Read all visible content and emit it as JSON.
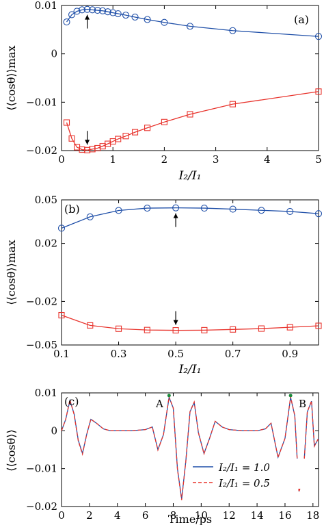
{
  "chart_data": [
    {
      "type": "line",
      "panel_label": "(a)",
      "xlabel": "I2/I1",
      "ylabel": "⟨⟨cosθ⟩⟩max",
      "xlim": [
        0,
        5
      ],
      "ylim": [
        -0.02,
        0.01
      ],
      "xticks": [
        0,
        1,
        2,
        3,
        4,
        5
      ],
      "xtick_labels": [
        "0",
        "1",
        "2",
        "3",
        "4",
        "5"
      ],
      "yticks": [
        -0.02,
        -0.01,
        0,
        0.01
      ],
      "ytick_labels": [
        "−0.02",
        "−0.01",
        "0",
        "0.01"
      ],
      "series": [
        {
          "color": "#1f4fa8",
          "marker": "circle",
          "x": [
            0.1,
            0.2,
            0.3,
            0.4,
            0.5,
            0.6,
            0.7,
            0.8,
            0.9,
            1.0,
            1.1,
            1.25,
            1.43,
            1.67,
            2.0,
            2.5,
            3.33,
            5.0
          ],
          "y": [
            0.0066,
            0.0081,
            0.0088,
            0.0091,
            0.0092,
            0.0091,
            0.009,
            0.0089,
            0.0087,
            0.0085,
            0.0083,
            0.008,
            0.0076,
            0.0071,
            0.0065,
            0.0057,
            0.0048,
            0.0036
          ]
        },
        {
          "color": "#e8332c",
          "marker": "square",
          "x": [
            0.1,
            0.2,
            0.3,
            0.4,
            0.5,
            0.6,
            0.7,
            0.8,
            0.9,
            1.0,
            1.1,
            1.25,
            1.43,
            1.67,
            2.0,
            2.5,
            3.33,
            5.0
          ],
          "y": [
            -0.0142,
            -0.0175,
            -0.0193,
            -0.0198,
            -0.0199,
            -0.0197,
            -0.0195,
            -0.0191,
            -0.0186,
            -0.0181,
            -0.0176,
            -0.017,
            -0.0162,
            -0.0153,
            -0.0141,
            -0.0125,
            -0.0104,
            -0.0078
          ]
        }
      ],
      "arrows": [
        {
          "x": 0.5,
          "direction": "up"
        },
        {
          "x": 0.5,
          "direction": "down"
        }
      ]
    },
    {
      "type": "line",
      "panel_label": "(b)",
      "xlabel": "I2/I1",
      "ylabel": "⟨⟨cosθ⟩⟩max",
      "xlim": [
        0.1,
        1.0
      ],
      "ylim": [
        -0.05,
        0.05
      ],
      "xticks": [
        0.1,
        0.3,
        0.5,
        0.7,
        0.9
      ],
      "xtick_labels": [
        "0.1",
        "0.3",
        "0.5",
        "0.7",
        "0.9"
      ],
      "yticks": [
        -0.05,
        -0.02,
        0.02,
        0.05
      ],
      "ytick_labels": [
        "−0.05",
        "−0.02",
        "0.02",
        "0.05"
      ],
      "series": [
        {
          "color": "#1f4fa8",
          "marker": "circle",
          "x": [
            0.1,
            0.2,
            0.3,
            0.4,
            0.5,
            0.6,
            0.7,
            0.8,
            0.9,
            1.0
          ],
          "y": [
            0.0305,
            0.0383,
            0.0427,
            0.0443,
            0.0445,
            0.0443,
            0.0436,
            0.0428,
            0.042,
            0.0405
          ]
        },
        {
          "color": "#e8332c",
          "marker": "square",
          "x": [
            0.1,
            0.2,
            0.3,
            0.4,
            0.5,
            0.6,
            0.7,
            0.8,
            0.9,
            1.0
          ],
          "y": [
            -0.0295,
            -0.0365,
            -0.0388,
            -0.0397,
            -0.0399,
            -0.0398,
            -0.0393,
            -0.0387,
            -0.0378,
            -0.0368
          ]
        }
      ],
      "arrows": [
        {
          "x": 0.5,
          "direction": "up"
        },
        {
          "x": 0.5,
          "direction": "down"
        }
      ]
    },
    {
      "type": "line",
      "panel_label": "(c)",
      "xlabel": "Time/ps",
      "ylabel": "⟨⟨cosθ⟩⟩",
      "xlim": [
        0,
        18.4
      ],
      "ylim": [
        -0.02,
        0.01
      ],
      "xticks": [
        0,
        2,
        4,
        6,
        8,
        10,
        12,
        14,
        16,
        18
      ],
      "xtick_labels": [
        "0",
        "2",
        "4",
        "6",
        "8",
        "10",
        "12",
        "14",
        "16",
        "18"
      ],
      "yticks": [
        -0.02,
        -0.01,
        0,
        0.01
      ],
      "ytick_labels": [
        "−0.02",
        "−0.01",
        "0",
        "0.01"
      ],
      "annotations": [
        {
          "text": "A",
          "x": 7.7,
          "y": 0.0093
        },
        {
          "text": "B",
          "x": 16.4,
          "y": 0.0093
        }
      ],
      "series": [
        {
          "name": "I2/I1 = 1.0",
          "color": "#1f4fa8",
          "style": "solid",
          "x": [
            0,
            0.3,
            0.6,
            0.9,
            1.2,
            1.5,
            1.8,
            2.1,
            2.5,
            3.0,
            3.5,
            4.0,
            5.0,
            6.0,
            6.5,
            6.9,
            7.3,
            7.7,
            8.0,
            8.3,
            8.6,
            8.9,
            9.2,
            9.5,
            9.8,
            10.2,
            10.6,
            11.0,
            11.5,
            12.0,
            13.0,
            14.0,
            14.6,
            15.0,
            15.5,
            16.0,
            16.4,
            16.7,
            17.0,
            17.3,
            17.6,
            17.9,
            18.1,
            18.4
          ],
          "y": [
            0,
            0.003,
            0.008,
            0.0045,
            -0.0025,
            -0.006,
            -0.001,
            0.003,
            0.002,
            0.0005,
            0,
            0,
            0,
            0.0003,
            0.001,
            -0.005,
            -0.001,
            0.0088,
            0.006,
            -0.01,
            -0.018,
            -0.008,
            0.005,
            0.0075,
            -0.0005,
            -0.006,
            -0.002,
            0.0025,
            0.001,
            0.0003,
            0,
            0,
            0.0005,
            0.002,
            -0.007,
            -0.002,
            0.0088,
            0.004,
            -0.016,
            -0.012,
            0.005,
            0.0078,
            -0.004,
            -0.002
          ]
        },
        {
          "name": "I2/I1 = 0.5",
          "color": "#e8332c",
          "style": "dashed",
          "x": [
            0,
            0.3,
            0.6,
            0.9,
            1.2,
            1.5,
            1.8,
            2.1,
            2.5,
            3.0,
            3.5,
            4.0,
            5.0,
            6.0,
            6.5,
            6.9,
            7.3,
            7.7,
            8.0,
            8.3,
            8.6,
            8.9,
            9.2,
            9.5,
            9.8,
            10.2,
            10.6,
            11.0,
            11.5,
            12.0,
            13.0,
            14.0,
            14.6,
            15.0,
            15.5,
            16.0,
            16.4,
            16.7,
            17.0,
            17.3,
            17.6,
            17.9,
            18.1,
            18.4
          ],
          "y": [
            0,
            0.003,
            0.0082,
            0.0043,
            -0.0027,
            -0.0062,
            -0.001,
            0.0031,
            0.002,
            0.0005,
            0,
            0,
            0,
            0.0003,
            0.001,
            -0.0051,
            -0.001,
            0.009,
            0.006,
            -0.0102,
            -0.0183,
            -0.0081,
            0.0051,
            0.0076,
            -0.0005,
            -0.0061,
            -0.002,
            0.0025,
            0.001,
            0.0003,
            0,
            0,
            0.0005,
            0.002,
            -0.0071,
            -0.002,
            0.009,
            0.004,
            -0.0162,
            -0.0121,
            0.0051,
            0.0079,
            -0.0041,
            -0.002
          ]
        }
      ],
      "legend": [
        {
          "text": "I₂/I₁ = 1.0",
          "color": "#1f4fa8",
          "style": "solid"
        },
        {
          "text": "I₂/I₁ = 0.5",
          "color": "#e8332c",
          "style": "dashed"
        }
      ],
      "legend_position": "bottom-center"
    }
  ],
  "labels": {
    "a": {
      "panel": "(a)",
      "ylabel": "⟨⟨cosθ⟩⟩max",
      "xlabel": "I₂/I₁"
    },
    "b": {
      "panel": "(b)",
      "ylabel": "⟨⟨cosθ⟩⟩max",
      "xlabel": "I₂/I₁"
    },
    "c": {
      "panel": "(c)",
      "ylabel": "⟨⟨cosθ⟩⟩",
      "xlabel": "Time/ps",
      "annA": "A",
      "annB": "B",
      "leg1": "I₂/I₁ = 1.0",
      "leg2": "I₂/I₁ = 0.5"
    }
  }
}
